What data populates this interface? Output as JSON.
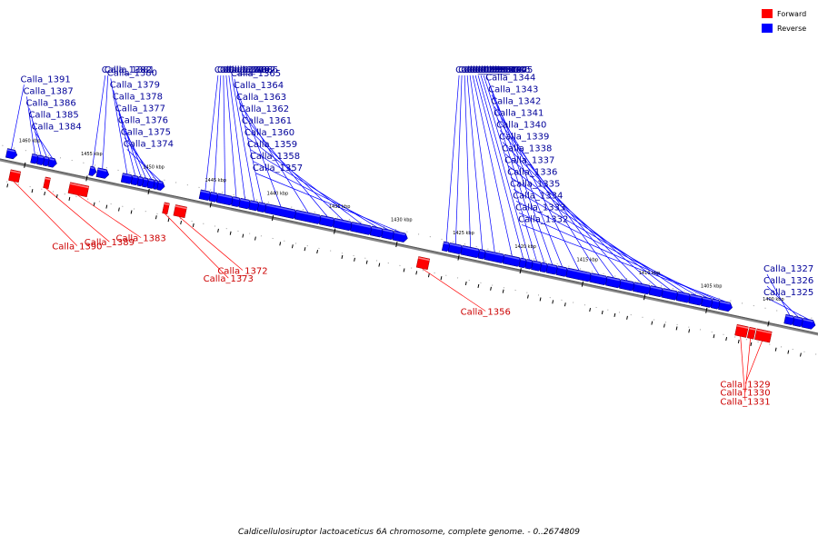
{
  "title": "Caldicellulosiruptor lactoaceticus 6A chromosome, complete genome. - 0..2674809",
  "legend": [
    {
      "label": "Forward",
      "color": "#ff0000"
    },
    {
      "label": "Reverse",
      "color": "#0000ff"
    }
  ],
  "colors": {
    "forward": "#ff0000",
    "reverse": "#0000ff",
    "forward_label": "#cc0000",
    "reverse_label": "#000099"
  },
  "ticks": [
    {
      "kbp": 1460,
      "label": "1460 kbp"
    },
    {
      "kbp": 1455,
      "label": "1455 kbp"
    },
    {
      "kbp": 1450,
      "label": "1450 kbp"
    },
    {
      "kbp": 1445,
      "label": "1445 kbp"
    },
    {
      "kbp": 1440,
      "label": "1440 kbp"
    },
    {
      "kbp": 1435,
      "label": "1435 kbp"
    },
    {
      "kbp": 1430,
      "label": "1430 kbp"
    },
    {
      "kbp": 1425,
      "label": "1425 kbp"
    },
    {
      "kbp": 1420,
      "label": "1420 kbp"
    },
    {
      "kbp": 1415,
      "label": "1415 kbp"
    },
    {
      "kbp": 1410,
      "label": "1410 kbp"
    },
    {
      "kbp": 1405,
      "label": "1405 kbp"
    },
    {
      "kbp": 1400,
      "label": "1400 kbp"
    }
  ],
  "genes": [
    {
      "name": "Calla_1391",
      "strand": "reverse",
      "start": 1461.6,
      "end": 1461.0
    },
    {
      "name": "Calla_1387",
      "strand": "reverse",
      "start": 1459.6,
      "end": 1459.2
    },
    {
      "name": "Calla_1386",
      "strand": "reverse",
      "start": 1459.1,
      "end": 1458.7
    },
    {
      "name": "Calla_1385",
      "strand": "reverse",
      "start": 1458.6,
      "end": 1458.3
    },
    {
      "name": "Calla_1384",
      "strand": "reverse",
      "start": 1458.2,
      "end": 1457.8
    },
    {
      "name": "Calla_1382",
      "strand": "reverse",
      "start": 1454.9,
      "end": 1454.6
    },
    {
      "name": "Calla_1381",
      "strand": "reverse",
      "start": 1454.3,
      "end": 1453.6
    },
    {
      "name": "Calla_1380",
      "strand": "reverse",
      "start": 1452.3,
      "end": 1451.6
    },
    {
      "name": "Calla_1379",
      "strand": "reverse",
      "start": 1451.5,
      "end": 1451.1
    },
    {
      "name": "Calla_1378",
      "strand": "reverse",
      "start": 1451.0,
      "end": 1450.7
    },
    {
      "name": "Calla_1377",
      "strand": "reverse",
      "start": 1450.6,
      "end": 1450.3
    },
    {
      "name": "Calla_1376",
      "strand": "reverse",
      "start": 1450.2,
      "end": 1449.8
    },
    {
      "name": "Calla_1375",
      "strand": "reverse",
      "start": 1449.7,
      "end": 1449.5
    },
    {
      "name": "Calla_1374",
      "strand": "reverse",
      "start": 1449.4,
      "end": 1449.1
    },
    {
      "name": "Calla_1371",
      "strand": "reverse",
      "start": 1446.0,
      "end": 1445.3
    },
    {
      "name": "Calla_1370",
      "strand": "reverse",
      "start": 1445.2,
      "end": 1444.7
    },
    {
      "name": "Calla_1369",
      "strand": "reverse",
      "start": 1444.6,
      "end": 1443.5
    },
    {
      "name": "Calla_1368",
      "strand": "reverse",
      "start": 1443.4,
      "end": 1442.9
    },
    {
      "name": "Calla_1367",
      "strand": "reverse",
      "start": 1442.8,
      "end": 1442.1
    },
    {
      "name": "Calla_1366",
      "strand": "reverse",
      "start": 1442.0,
      "end": 1441.4
    },
    {
      "name": "Calla_1365",
      "strand": "reverse",
      "start": 1441.3,
      "end": 1440.8
    },
    {
      "name": "Calla_1364",
      "strand": "reverse",
      "start": 1440.7,
      "end": 1438.4
    },
    {
      "name": "Calla_1363",
      "strand": "reverse",
      "start": 1438.3,
      "end": 1436.4
    },
    {
      "name": "Calla_1362",
      "strand": "reverse",
      "start": 1436.3,
      "end": 1435.3
    },
    {
      "name": "Calla_1361",
      "strand": "reverse",
      "start": 1435.2,
      "end": 1433.9
    },
    {
      "name": "Calla_1360",
      "strand": "reverse",
      "start": 1433.8,
      "end": 1432.3
    },
    {
      "name": "Calla_1359",
      "strand": "reverse",
      "start": 1432.2,
      "end": 1431.4
    },
    {
      "name": "Calla_1358",
      "strand": "reverse",
      "start": 1431.3,
      "end": 1430.5
    },
    {
      "name": "Calla_1357",
      "strand": "reverse",
      "start": 1430.4,
      "end": 1429.5
    },
    {
      "name": "Calla_1355",
      "strand": "reverse",
      "start": 1426.4,
      "end": 1426.0
    },
    {
      "name": "Calla_1354",
      "strand": "reverse",
      "start": 1425.9,
      "end": 1425.0
    },
    {
      "name": "Calla_1353",
      "strand": "reverse",
      "start": 1424.9,
      "end": 1423.6
    },
    {
      "name": "Calla_1352",
      "strand": "reverse",
      "start": 1423.5,
      "end": 1423.1
    },
    {
      "name": "Calla_1351",
      "strand": "reverse",
      "start": 1423.0,
      "end": 1421.6
    },
    {
      "name": "Calla_1350",
      "strand": "reverse",
      "start": 1421.5,
      "end": 1420.3
    },
    {
      "name": "Calla_1349",
      "strand": "reverse",
      "start": 1420.2,
      "end": 1419.8
    },
    {
      "name": "Calla_1348",
      "strand": "reverse",
      "start": 1419.7,
      "end": 1419.3
    },
    {
      "name": "Calla_1347",
      "strand": "reverse",
      "start": 1419.2,
      "end": 1418.6
    },
    {
      "name": "Calla_1346",
      "strand": "reverse",
      "start": 1418.5,
      "end": 1418.1
    },
    {
      "name": "Calla_1345",
      "strand": "reverse",
      "start": 1418.0,
      "end": 1417.3
    },
    {
      "name": "Calla_1344",
      "strand": "reverse",
      "start": 1417.2,
      "end": 1416.5
    },
    {
      "name": "Calla_1343",
      "strand": "reverse",
      "start": 1416.4,
      "end": 1414.6
    },
    {
      "name": "Calla_1342",
      "strand": "reverse",
      "start": 1414.5,
      "end": 1413.3
    },
    {
      "name": "Calla_1341",
      "strand": "reverse",
      "start": 1413.2,
      "end": 1412.2
    },
    {
      "name": "Calla_1340",
      "strand": "reverse",
      "start": 1412.1,
      "end": 1411.1
    },
    {
      "name": "Calla_1339",
      "strand": "reverse",
      "start": 1411.0,
      "end": 1409.8
    },
    {
      "name": "Calla_1338",
      "strand": "reverse",
      "start": 1409.7,
      "end": 1408.8
    },
    {
      "name": "Calla_1337",
      "strand": "reverse",
      "start": 1408.7,
      "end": 1407.6
    },
    {
      "name": "Calla_1336",
      "strand": "reverse",
      "start": 1407.5,
      "end": 1406.6
    },
    {
      "name": "Calla_1335",
      "strand": "reverse",
      "start": 1406.5,
      "end": 1405.6
    },
    {
      "name": "Calla_1334",
      "strand": "reverse",
      "start": 1405.5,
      "end": 1404.8
    },
    {
      "name": "Calla_1333",
      "strand": "reverse",
      "start": 1404.7,
      "end": 1404.2
    },
    {
      "name": "Calla_1332",
      "strand": "reverse",
      "start": 1404.1,
      "end": 1403.3
    },
    {
      "name": "Calla_1327",
      "strand": "reverse",
      "start": 1398.8,
      "end": 1398.2
    },
    {
      "name": "Calla_1326",
      "strand": "reverse",
      "start": 1398.1,
      "end": 1397.5
    },
    {
      "name": "Calla_1325",
      "strand": "reverse",
      "start": 1397.4,
      "end": 1396.6
    },
    {
      "name": "Calla_1390",
      "strand": "forward",
      "start": 1460.2,
      "end": 1461.0
    },
    {
      "name": "Calla_1389",
      "strand": "forward",
      "start": 1458.2,
      "end": 1457.8
    },
    {
      "name": "Calla_1383",
      "strand": "forward",
      "start": 1454.7,
      "end": 1456.2
    },
    {
      "name": "Calla_1373",
      "strand": "forward",
      "start": 1448.2,
      "end": 1448.6
    },
    {
      "name": "Calla_1372",
      "strand": "forward",
      "start": 1446.8,
      "end": 1447.7
    },
    {
      "name": "Calla_1356",
      "strand": "forward",
      "start": 1427.2,
      "end": 1428.1
    },
    {
      "name": "Calla_1331",
      "strand": "forward",
      "start": 1401.5,
      "end": 1402.4
    },
    {
      "name": "Calla_1330",
      "strand": "forward",
      "start": 1400.9,
      "end": 1401.4
    },
    {
      "name": "Calla_1329",
      "strand": "forward",
      "start": 1399.6,
      "end": 1400.8
    }
  ]
}
